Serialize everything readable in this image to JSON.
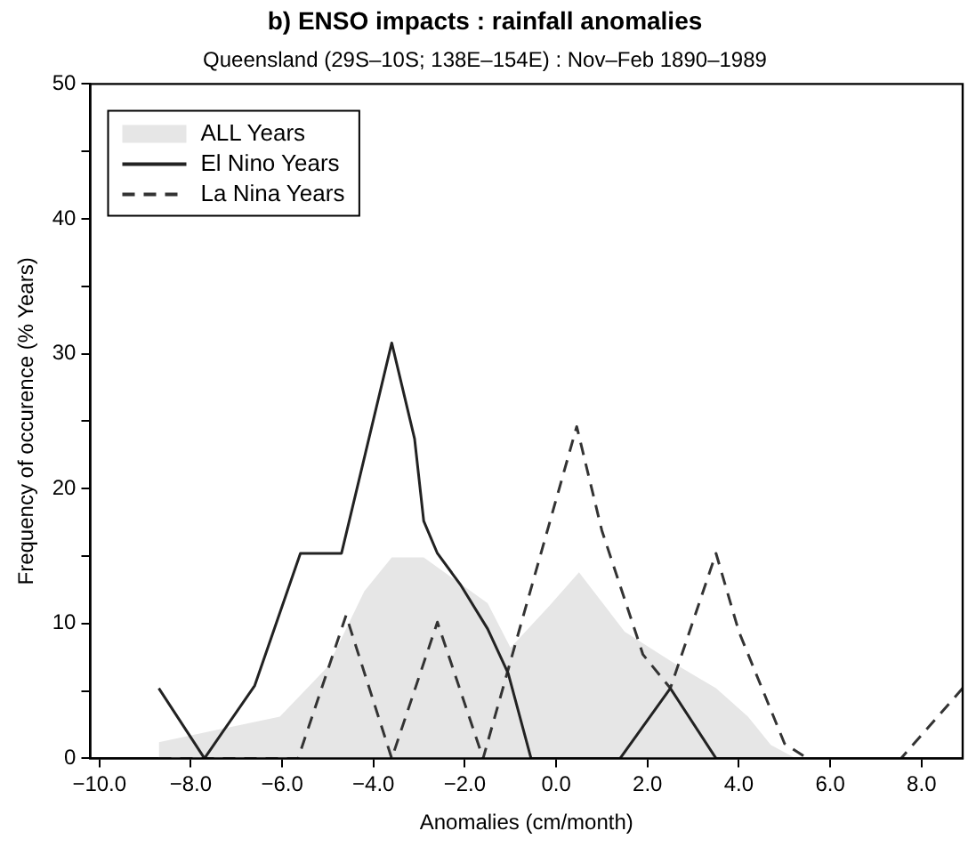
{
  "chart_data": {
    "type": "line",
    "title": "b) ENSO impacts : rainfall anomalies",
    "subtitle": "Queensland (29S–10S; 138E–154E) : Nov–Feb 1890–1989",
    "xlabel": "Anomalies (cm/month)",
    "ylabel": "Frequency of occurence (% Years)",
    "xlim": [
      -10.2,
      8.9
    ],
    "xticks": [
      {
        "value": -10,
        "label": "−10.0"
      },
      {
        "value": -8,
        "label": "−8.0"
      },
      {
        "value": -6,
        "label": "−6.0"
      },
      {
        "value": -4,
        "label": "−4.0"
      },
      {
        "value": -2,
        "label": "−2.0"
      },
      {
        "value": 0,
        "label": "0.0"
      },
      {
        "value": 2,
        "label": "2.0"
      },
      {
        "value": 4,
        "label": "4.0"
      },
      {
        "value": 6,
        "label": "6.0"
      },
      {
        "value": 8,
        "label": "8.0"
      }
    ],
    "ylim": [
      0,
      50
    ],
    "yticks": [
      0,
      {
        "value": 5,
        "label": null
      },
      10,
      {
        "value": 15,
        "label": null
      },
      20,
      {
        "value": 25,
        "label": null
      },
      30,
      {
        "value": 35,
        "label": null
      },
      40,
      {
        "value": 45,
        "label": null
      },
      50
    ],
    "legend": "top left",
    "marker": "none",
    "series": [
      {
        "name": "ALL Years",
        "type": "area",
        "color": "#e6e6e6",
        "x": [
          -8.7,
          -6.05,
          -5.0,
          -4.2,
          -3.6,
          -2.9,
          -1.5,
          -1.0,
          -0.15,
          0.5,
          1.5,
          2.7,
          3.5,
          4.2,
          4.7,
          5.25
        ],
        "values": [
          1.2,
          3.1,
          6.8,
          12.4,
          14.9,
          14.9,
          11.5,
          8.2,
          11.3,
          13.8,
          9.4,
          6.8,
          5.2,
          3.1,
          1.0,
          0
        ]
      },
      {
        "name": "El Nino Years",
        "color": "#222222",
        "x": [
          -8.7,
          -7.7,
          -6.6,
          -6.1,
          -5.6,
          -4.7,
          -3.6,
          -3.1,
          -2.9,
          -2.6,
          -2.1,
          -1.5,
          -1.05,
          -0.55,
          1.4,
          2.5,
          3.5,
          8.9
        ],
        "values": [
          5.2,
          0,
          5.4,
          10.3,
          15.2,
          15.2,
          30.8,
          23.7,
          17.6,
          15.2,
          12.9,
          9.6,
          6.3,
          0,
          0,
          5.2,
          0,
          0
        ]
      },
      {
        "name": "La Nina Years",
        "color": "#333333",
        "line_style": "dashed",
        "x": [
          -8.7,
          -5.65,
          -4.6,
          -3.6,
          -2.6,
          -1.6,
          0.45,
          1.0,
          1.9,
          2.5,
          3.5,
          4.0,
          5.0,
          5.5,
          7.55,
          8.9
        ],
        "values": [
          0,
          0,
          10.6,
          0,
          10.1,
          0,
          24.6,
          16.9,
          7.7,
          5.2,
          15.2,
          9.4,
          1.1,
          0,
          0,
          5.2
        ]
      }
    ]
  }
}
